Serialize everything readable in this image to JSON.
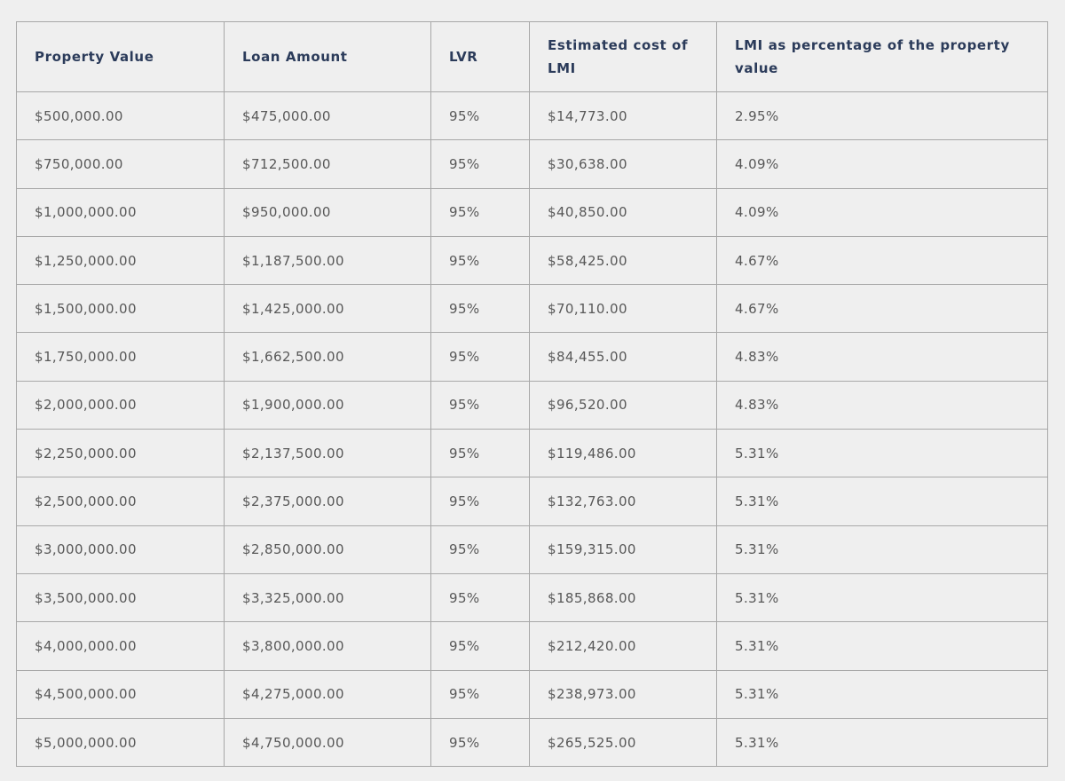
{
  "table": {
    "header": [
      "Property Value",
      "Loan Amount",
      "LVR",
      "Estimated cost of LMI",
      "LMI as percentage of the property value"
    ],
    "rows": [
      [
        "$500,000.00",
        "$475,000.00",
        "95%",
        "$14,773.00",
        "2.95%"
      ],
      [
        "$750,000.00",
        "$712,500.00",
        "95%",
        "$30,638.00",
        "4.09%"
      ],
      [
        "$1,000,000.00",
        "$950,000.00",
        "95%",
        "$40,850.00",
        "4.09%"
      ],
      [
        "$1,250,000.00",
        "$1,187,500.00",
        "95%",
        "$58,425.00",
        "4.67%"
      ],
      [
        "$1,500,000.00",
        "$1,425,000.00",
        "95%",
        "$70,110.00",
        "4.67%"
      ],
      [
        "$1,750,000.00",
        "$1,662,500.00",
        "95%",
        "$84,455.00",
        "4.83%"
      ],
      [
        "$2,000,000.00",
        "$1,900,000.00",
        "95%",
        "$96,520.00",
        "4.83%"
      ],
      [
        "$2,250,000.00",
        "$2,137,500.00",
        "95%",
        "$119,486.00",
        "5.31%"
      ],
      [
        "$2,500,000.00",
        "$2,375,000.00",
        "95%",
        "$132,763.00",
        "5.31%"
      ],
      [
        "$3,000,000.00",
        "$2,850,000.00",
        "95%",
        "$159,315.00",
        "5.31%"
      ],
      [
        "$3,500,000.00",
        "$3,325,000.00",
        "95%",
        "$185,868.00",
        "5.31%"
      ],
      [
        "$4,000,000.00",
        "$3,800,000.00",
        "95%",
        "$212,420.00",
        "5.31%"
      ],
      [
        "$4,500,000.00",
        "$4,275,000.00",
        "95%",
        "$238,973.00",
        "5.31%"
      ],
      [
        "$5,000,000.00",
        "$4,750,000.00",
        "95%",
        "$265,525.00",
        "5.31%"
      ]
    ]
  }
}
